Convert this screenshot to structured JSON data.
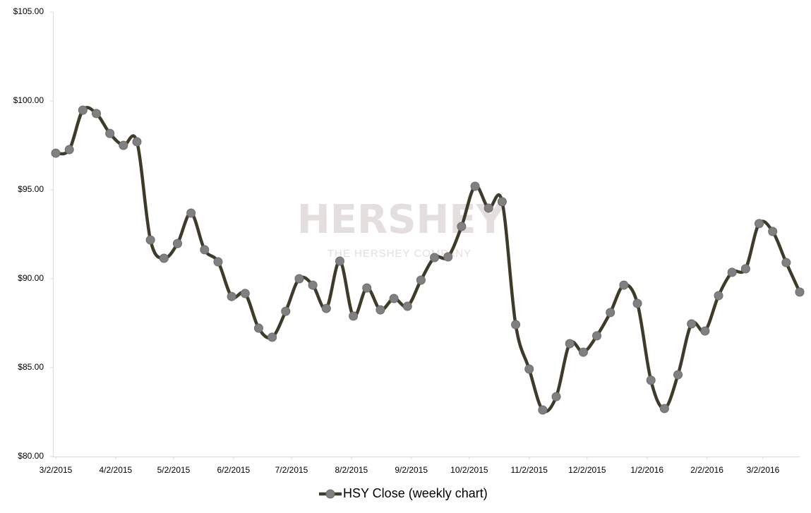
{
  "chart_data": {
    "type": "line",
    "watermark": {
      "title": "HERSHEY",
      "subtitle": "THE HERSHEY COMPANY"
    },
    "x": [
      "2015-03-02",
      "2015-03-09",
      "2015-03-16",
      "2015-03-23",
      "2015-03-30",
      "2015-04-06",
      "2015-04-13",
      "2015-04-20",
      "2015-04-27",
      "2015-05-04",
      "2015-05-11",
      "2015-05-18",
      "2015-05-25",
      "2015-06-01",
      "2015-06-08",
      "2015-06-15",
      "2015-06-22",
      "2015-06-29",
      "2015-07-06",
      "2015-07-13",
      "2015-07-20",
      "2015-07-27",
      "2015-08-03",
      "2015-08-10",
      "2015-08-17",
      "2015-08-24",
      "2015-08-31",
      "2015-09-07",
      "2015-09-14",
      "2015-09-21",
      "2015-09-28",
      "2015-10-05",
      "2015-10-12",
      "2015-10-19",
      "2015-10-26",
      "2015-11-02",
      "2015-11-09",
      "2015-11-16",
      "2015-11-23",
      "2015-11-30",
      "2015-12-07",
      "2015-12-14",
      "2015-12-21",
      "2015-12-28",
      "2016-01-04",
      "2016-01-11",
      "2016-01-18",
      "2016-01-25",
      "2016-02-01",
      "2016-02-08",
      "2016-02-15",
      "2016-02-22",
      "2016-02-29",
      "2016-03-07",
      "2016-03-14",
      "2016-03-21"
    ],
    "series": [
      {
        "name": "HSY Close (weekly chart)",
        "color": "#3f3b2b",
        "marker_color": "#808080",
        "values": [
          97.06,
          97.26,
          99.48,
          99.29,
          98.17,
          97.5,
          97.7,
          92.18,
          91.15,
          91.98,
          93.69,
          91.63,
          90.95,
          89.0,
          89.17,
          87.22,
          86.71,
          88.17,
          90.0,
          89.64,
          88.33,
          90.99,
          87.9,
          89.48,
          88.25,
          88.89,
          88.45,
          89.92,
          91.19,
          91.23,
          92.94,
          95.2,
          93.97,
          94.33,
          87.42,
          84.92,
          82.62,
          83.37,
          86.35,
          85.87,
          86.79,
          88.1,
          89.64,
          88.61,
          84.29,
          82.7,
          84.6,
          87.46,
          87.06,
          89.05,
          90.36,
          90.56,
          93.1,
          92.66,
          90.91,
          89.25
        ]
      }
    ],
    "xlim": [
      "2015-03-02",
      "2016-03-21"
    ],
    "xticks": [
      {
        "value": "2015-03-02",
        "label": "3/2/2015"
      },
      {
        "value": "2015-04-02",
        "label": "4/2/2015"
      },
      {
        "value": "2015-05-02",
        "label": "5/2/2015"
      },
      {
        "value": "2015-06-02",
        "label": "6/2/2015"
      },
      {
        "value": "2015-07-02",
        "label": "7/2/2015"
      },
      {
        "value": "2015-08-02",
        "label": "8/2/2015"
      },
      {
        "value": "2015-09-02",
        "label": "9/2/2015"
      },
      {
        "value": "2015-10-02",
        "label": "10/2/2015"
      },
      {
        "value": "2015-11-02",
        "label": "11/2/2015"
      },
      {
        "value": "2015-12-02",
        "label": "12/2/2015"
      },
      {
        "value": "2016-01-02",
        "label": "1/2/2016"
      },
      {
        "value": "2016-02-02",
        "label": "2/2/2016"
      },
      {
        "value": "2016-03-02",
        "label": "3/2/2016"
      }
    ],
    "ylim": [
      80,
      105
    ],
    "yticks": [
      {
        "value": 80,
        "label": "$80.00"
      },
      {
        "value": 85,
        "label": "$85.00"
      },
      {
        "value": 90,
        "label": "$90.00"
      },
      {
        "value": 95,
        "label": "$95.00"
      },
      {
        "value": 100,
        "label": "$100.00"
      },
      {
        "value": 105,
        "label": "$105.00"
      }
    ],
    "legend": "bottom"
  }
}
